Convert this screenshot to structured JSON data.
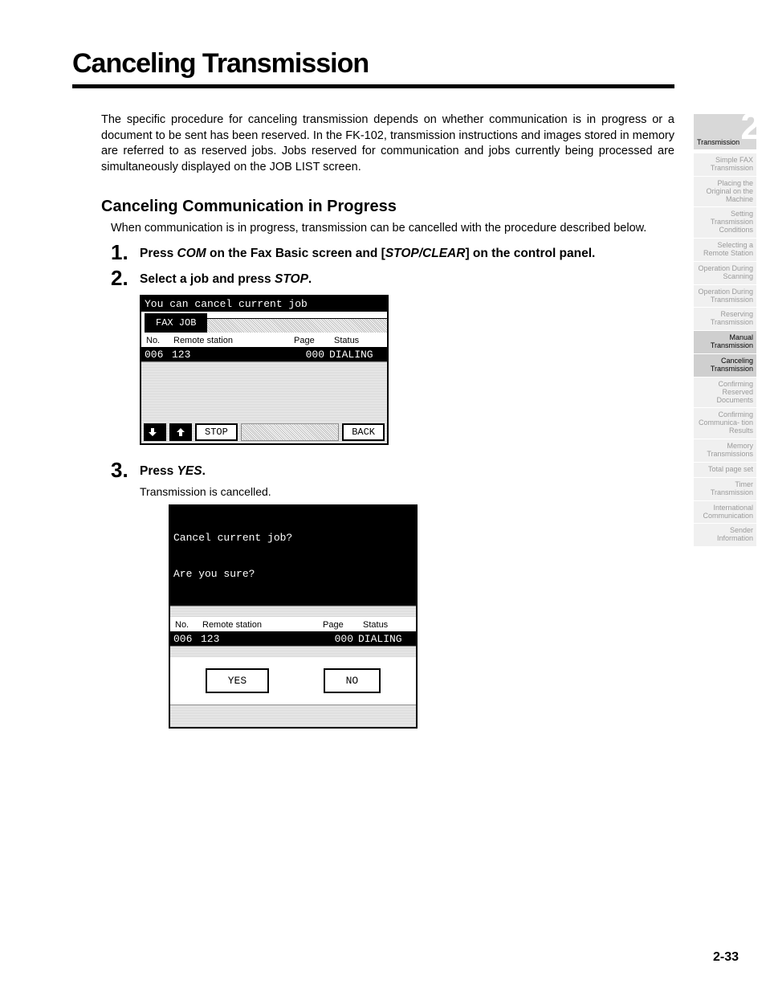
{
  "title": "Canceling Transmission",
  "intro": "The specific procedure for canceling transmission depends on whether communication is in progress or a document to be sent has been reserved. In the FK-102, transmission instructions and images stored in memory are referred to as reserved jobs. Jobs reserved for communication and jobs currently being processed are simultaneously displayed on the JOB LIST screen.",
  "subhead": "Canceling Communication in Progress",
  "subtext": "When communication is in progress, transmission can be cancelled with the procedure described below.",
  "steps": {
    "s1": {
      "num": "1.",
      "pre": "Press ",
      "em1": "COM",
      "mid": " on the Fax Basic screen and [",
      "em2": "STOP/CLEAR",
      "post": "] on the control panel."
    },
    "s2": {
      "num": "2.",
      "pre": "Select a job and press ",
      "em1": "STOP",
      "post": "."
    },
    "s3": {
      "num": "3.",
      "pre": "Press ",
      "em1": "YES",
      "post": ".",
      "note": "Transmission is cancelled."
    }
  },
  "lcd1": {
    "top": "You can cancel current job",
    "tab": "FAX JOB",
    "cols": {
      "c1": "No.",
      "c2": "Remote station",
      "c3": "Page",
      "c4": "Status"
    },
    "row": {
      "no": "006",
      "remote": "123",
      "page": "000",
      "status": "DIALING"
    },
    "btn_stop": "STOP",
    "btn_back": "BACK"
  },
  "lcd2": {
    "top1": "Cancel current job?",
    "top2": "Are you sure?",
    "cols": {
      "c1": "No.",
      "c2": "Remote station",
      "c3": "Page",
      "c4": "Status"
    },
    "row": {
      "no": "006",
      "remote": "123",
      "page": "000",
      "status": "DIALING"
    },
    "yes": "YES",
    "no": "NO"
  },
  "sidebar": {
    "chapter_num": "2",
    "chapter_label": "Transmission",
    "items": [
      {
        "t": "Simple FAX Transmission",
        "dark": false
      },
      {
        "t": "Placing the Original on the Machine",
        "dark": false
      },
      {
        "t": "Setting Transmission Conditions",
        "dark": false
      },
      {
        "t": "Selecting a Remote Station",
        "dark": false
      },
      {
        "t": "Operation During Scanning",
        "dark": false
      },
      {
        "t": "Operation During Transmission",
        "dark": false
      },
      {
        "t": "Reserving Transmission",
        "dark": false
      },
      {
        "t": "Manual Transmission",
        "dark": true
      },
      {
        "t": "Canceling Transmission",
        "dark": true
      },
      {
        "t": "Confirming Reserved Documents",
        "dark": false
      },
      {
        "t": "Confirming Communica- tion Results",
        "dark": false
      },
      {
        "t": "Memory Transmissions",
        "dark": false
      },
      {
        "t": "Total page set",
        "dark": false
      },
      {
        "t": "Timer Transmission",
        "dark": false
      },
      {
        "t": "International Communication",
        "dark": false
      },
      {
        "t": "Sender Information",
        "dark": false
      }
    ]
  },
  "page_number": "2-33"
}
